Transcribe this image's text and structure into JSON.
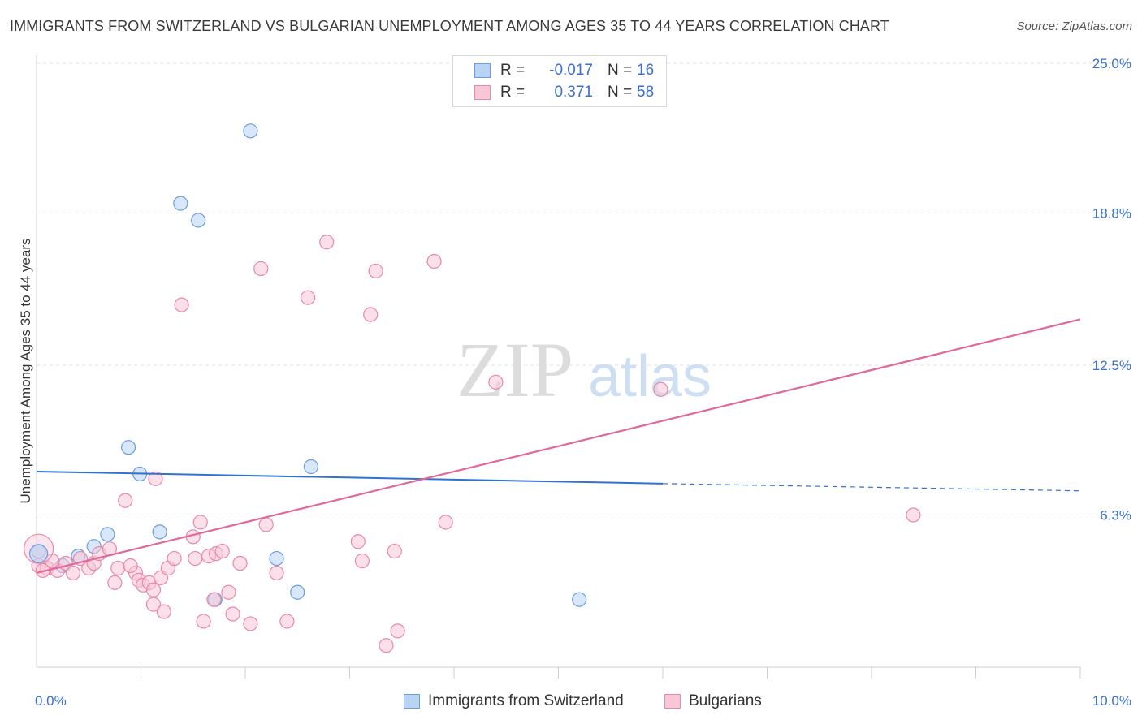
{
  "title": "IMMIGRANTS FROM SWITZERLAND VS BULGARIAN UNEMPLOYMENT AMONG AGES 35 TO 44 YEARS CORRELATION CHART",
  "source": "Source: ZipAtlas.com",
  "watermark": {
    "zip": "ZIP",
    "atlas": "atlas"
  },
  "legend": {
    "r_label": "R =",
    "n_label": "N =",
    "series": [
      {
        "name": "Immigrants from Switzerland",
        "r": "-0.017",
        "n": "16"
      },
      {
        "name": "Bulgarians",
        "r": "0.371",
        "n": "58"
      }
    ]
  },
  "colors": {
    "blue_fill": "#b9d3f5",
    "blue_stroke": "#6a9de0",
    "blue_line": "#2f72d1",
    "pink_fill": "#f8c6d7",
    "pink_stroke": "#e889a8",
    "pink_line": "#e0689a",
    "grid": "#e2e2e2",
    "axis_label": "#3a6fd0"
  },
  "chart_data": {
    "type": "scatter",
    "title": "IMMIGRANTS FROM SWITZERLAND VS BULGARIAN UNEMPLOYMENT AMONG AGES 35 TO 44 YEARS CORRELATION CHART",
    "xlabel": "",
    "ylabel": "Unemployment Among Ages 35 to 44 years",
    "xlim": [
      0,
      10
    ],
    "ylim": [
      0,
      25
    ],
    "x_tick_labels": [
      "0.0%",
      "10.0%"
    ],
    "y_ticks": [
      6.3,
      12.5,
      18.8,
      25.0
    ],
    "y_tick_labels": [
      "6.3%",
      "12.5%",
      "18.8%",
      "25.0%"
    ],
    "x_ticks": [
      0,
      1,
      2,
      3,
      4,
      5,
      6,
      7,
      8,
      9,
      10
    ],
    "series": [
      {
        "name": "Immigrants from Switzerland",
        "points": [
          [
            0.02,
            4.8
          ],
          [
            0.25,
            4.2
          ],
          [
            0.4,
            4.6
          ],
          [
            0.55,
            5.0
          ],
          [
            0.68,
            5.5
          ],
          [
            0.88,
            9.1
          ],
          [
            0.99,
            8.0
          ],
          [
            1.18,
            5.6
          ],
          [
            1.38,
            19.2
          ],
          [
            1.55,
            18.5
          ],
          [
            1.71,
            2.8
          ],
          [
            2.05,
            22.2
          ],
          [
            2.3,
            4.5
          ],
          [
            2.5,
            3.1
          ],
          [
            2.63,
            8.3
          ],
          [
            5.2,
            2.8
          ]
        ],
        "trend": {
          "x": [
            0,
            6
          ],
          "y": [
            8.1,
            7.6
          ],
          "dashed_to": [
            10,
            7.3
          ]
        }
      },
      {
        "name": "Bulgarians",
        "points": [
          [
            0.02,
            4.2
          ],
          [
            0.1,
            4.1
          ],
          [
            0.2,
            4.0
          ],
          [
            0.28,
            4.3
          ],
          [
            0.35,
            3.9
          ],
          [
            0.42,
            4.5
          ],
          [
            0.5,
            4.1
          ],
          [
            0.55,
            4.3
          ],
          [
            0.6,
            4.7
          ],
          [
            0.7,
            4.9
          ],
          [
            0.75,
            3.5
          ],
          [
            0.78,
            4.1
          ],
          [
            0.95,
            3.9
          ],
          [
            0.85,
            6.9
          ],
          [
            0.98,
            3.6
          ],
          [
            0.9,
            4.2
          ],
          [
            1.02,
            3.4
          ],
          [
            1.08,
            3.5
          ],
          [
            1.12,
            3.2
          ],
          [
            1.12,
            2.6
          ],
          [
            1.14,
            7.8
          ],
          [
            1.19,
            3.7
          ],
          [
            1.26,
            4.1
          ],
          [
            1.22,
            2.3
          ],
          [
            1.32,
            4.5
          ],
          [
            1.39,
            15.0
          ],
          [
            1.5,
            5.4
          ],
          [
            1.52,
            4.5
          ],
          [
            1.57,
            6.0
          ],
          [
            1.6,
            1.9
          ],
          [
            1.65,
            4.6
          ],
          [
            1.7,
            2.8
          ],
          [
            1.72,
            4.7
          ],
          [
            1.78,
            4.8
          ],
          [
            1.84,
            3.1
          ],
          [
            1.88,
            2.2
          ],
          [
            1.95,
            4.3
          ],
          [
            2.05,
            1.8
          ],
          [
            2.15,
            16.5
          ],
          [
            2.2,
            5.9
          ],
          [
            2.3,
            3.9
          ],
          [
            2.4,
            1.9
          ],
          [
            2.6,
            15.3
          ],
          [
            2.78,
            17.6
          ],
          [
            3.08,
            5.2
          ],
          [
            3.12,
            4.4
          ],
          [
            3.2,
            14.6
          ],
          [
            3.25,
            16.4
          ],
          [
            3.35,
            0.9
          ],
          [
            3.43,
            4.8
          ],
          [
            3.46,
            1.5
          ],
          [
            3.81,
            16.8
          ],
          [
            3.92,
            6.0
          ],
          [
            4.4,
            11.8
          ],
          [
            5.98,
            11.5
          ],
          [
            8.4,
            6.3
          ],
          [
            0.06,
            4.0
          ],
          [
            0.15,
            4.4
          ]
        ],
        "trend": {
          "x": [
            0,
            10
          ],
          "y": [
            3.9,
            14.4
          ]
        }
      }
    ]
  }
}
